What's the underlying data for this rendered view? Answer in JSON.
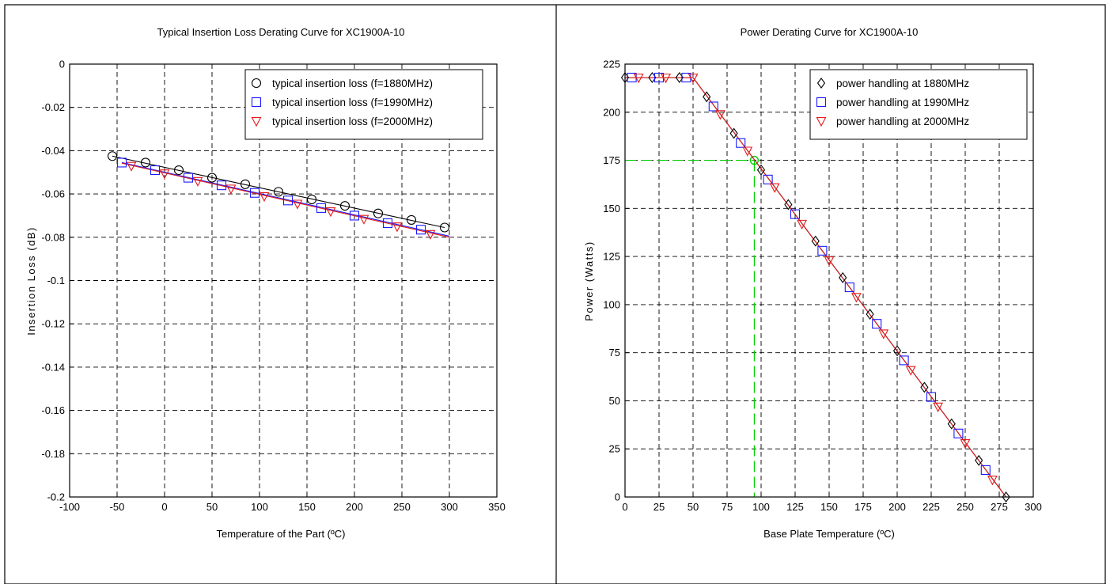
{
  "chart_data": [
    {
      "type": "line",
      "title": "Typical Insertion Loss Derating Curve for XC1900A-10",
      "xlabel": "Temperature of the Part (ºC)",
      "ylabel": "Insertion Loss (dB)",
      "xlim": [
        -100,
        350
      ],
      "ylim": [
        -0.2,
        0
      ],
      "xticks": [
        "-100",
        "-50",
        "0",
        "50",
        "100",
        "150",
        "200",
        "250",
        "300",
        "350"
      ],
      "yticks": [
        "0",
        "-0.02",
        "-0.04",
        "-0.06",
        "-0.08",
        "-0.1",
        "-0.12",
        "-0.14",
        "-0.16",
        "-0.18",
        "-0.2"
      ],
      "grid": true,
      "legend_position": "top-right",
      "series": [
        {
          "name": "typical insertion loss (f=1880MHz)",
          "marker": "circle",
          "color": "#000000",
          "x": [
            -55,
            -20,
            15,
            50,
            85,
            120,
            155,
            190,
            225,
            260,
            295
          ],
          "y": [
            -0.0425,
            -0.0455,
            -0.049,
            -0.0525,
            -0.0555,
            -0.059,
            -0.0625,
            -0.0655,
            -0.069,
            -0.072,
            -0.0755
          ]
        },
        {
          "name": "typical insertion loss (f=1990MHz)",
          "marker": "square",
          "color": "#1a1aff",
          "x": [
            -45,
            -10,
            25,
            60,
            95,
            130,
            165,
            200,
            235,
            270
          ],
          "y": [
            -0.0455,
            -0.049,
            -0.0525,
            -0.056,
            -0.0595,
            -0.063,
            -0.0665,
            -0.07,
            -0.0735,
            -0.0765
          ]
        },
        {
          "name": "typical insertion loss (f=2000MHz)",
          "marker": "triangle-down",
          "color": "#e31a1a",
          "x": [
            -35,
            0,
            35,
            70,
            105,
            140,
            175,
            210,
            245,
            280
          ],
          "y": [
            -0.047,
            -0.0505,
            -0.054,
            -0.0575,
            -0.061,
            -0.0645,
            -0.068,
            -0.0715,
            -0.075,
            -0.0785
          ]
        }
      ],
      "fit_lines": [
        {
          "color": "#000000",
          "x": [
            -55,
            295
          ],
          "y": [
            -0.0425,
            -0.0755
          ]
        },
        {
          "color": "#1a1aff",
          "x": [
            -45,
            300
          ],
          "y": [
            -0.0455,
            -0.0795
          ]
        },
        {
          "color": "#e31a1a",
          "x": [
            -45,
            300
          ],
          "y": [
            -0.0458,
            -0.08
          ]
        }
      ]
    },
    {
      "type": "line",
      "title": "Power Derating Curve for XC1900A-10",
      "xlabel": "Base Plate Temperature (ºC)",
      "ylabel": "Power (Watts)",
      "xlim": [
        0,
        300
      ],
      "ylim": [
        0,
        225
      ],
      "xticks": [
        "0",
        "25",
        "50",
        "75",
        "100",
        "125",
        "150",
        "175",
        "200",
        "225",
        "250",
        "275",
        "300"
      ],
      "yticks": [
        "0",
        "25",
        "50",
        "75",
        "100",
        "125",
        "150",
        "175",
        "200",
        "225"
      ],
      "grid": true,
      "legend_position": "top-right",
      "series": [
        {
          "name": "power handling at 1880MHz",
          "marker": "diamond",
          "color": "#000000",
          "x": [
            0,
            20,
            40,
            60,
            80,
            100,
            120,
            140,
            160,
            180,
            200,
            220,
            240,
            260,
            280
          ],
          "y": [
            218,
            218,
            218,
            208,
            189,
            170,
            152,
            133,
            114,
            95,
            76,
            57,
            38,
            19,
            0
          ]
        },
        {
          "name": "power handling at 1990MHz",
          "marker": "square",
          "color": "#1a1aff",
          "x": [
            5,
            25,
            45,
            65,
            85,
            105,
            125,
            145,
            165,
            185,
            205,
            225,
            245,
            265
          ],
          "y": [
            218,
            218,
            218,
            203,
            184,
            165,
            147,
            128,
            109,
            90,
            71,
            52,
            33,
            14
          ]
        },
        {
          "name": "power handling at 2000MHz",
          "marker": "triangle-down",
          "color": "#e31a1a",
          "x": [
            10,
            30,
            50,
            70,
            90,
            110,
            130,
            150,
            170,
            190,
            210,
            230,
            250,
            270
          ],
          "y": [
            218,
            218,
            218,
            199,
            180,
            161,
            142,
            123,
            104,
            85,
            66,
            47,
            28,
            9
          ]
        }
      ],
      "fit_lines": [
        {
          "color": "#000000",
          "x": [
            0,
            50,
            280
          ],
          "y": [
            218,
            218,
            0
          ]
        },
        {
          "color": "#e31a1a",
          "x": [
            0,
            50,
            280
          ],
          "y": [
            218,
            218,
            0
          ]
        }
      ],
      "annotation": {
        "color": "#00cc00",
        "point": {
          "x": 95,
          "y": 175
        }
      }
    }
  ]
}
